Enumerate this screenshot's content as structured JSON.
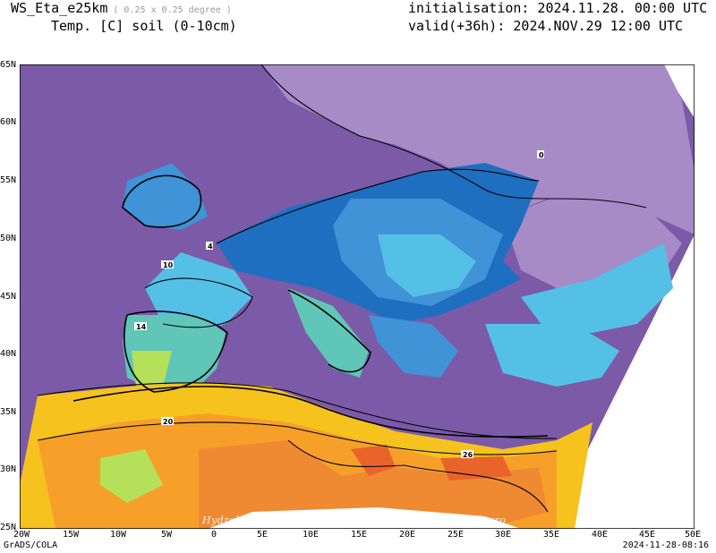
{
  "header": {
    "model": "WS_Eta_e25km",
    "resolution": "( 0.25 x 0.25 degree )",
    "variable": "Temp. [C] soil (0-10cm)",
    "initialisation": "initialisation: 2024.11.28. 00:00 UTC",
    "valid": "valid(+36h): 2024.NOV.29 12:00 UTC"
  },
  "axes": {
    "lat_labels": [
      "65N",
      "60N",
      "55N",
      "50N",
      "45N",
      "40N",
      "35N",
      "30N",
      "25N"
    ],
    "lon_labels": [
      "20W",
      "15W",
      "10W",
      "5W",
      "0",
      "5E",
      "10E",
      "15E",
      "20E",
      "25E",
      "30E",
      "35E",
      "40E",
      "45E",
      "50E"
    ]
  },
  "contour_labels": [
    "0",
    "4",
    "10",
    "14",
    "20",
    "26"
  ],
  "watermark": "Hydrological and Meteorological service of Montenegro",
  "footer": {
    "left": "GrADS/COLA",
    "right": "2024-11-28-08:16"
  },
  "colors": {
    "below_0": "#a78bc7",
    "0_4": "#7b5aa8",
    "4_6": "#1f6fc0",
    "6_8": "#3f93d6",
    "8_10": "#55c0e6",
    "10_12": "#5fc6b8",
    "12_14": "#2fa47c",
    "14_16": "#b5e05a",
    "16_18": "#f2ec3a",
    "18_20": "#f5c21e",
    "20_22": "#f6a02a",
    "22_26": "#ef8a32",
    "above_26": "#e9642b"
  }
}
